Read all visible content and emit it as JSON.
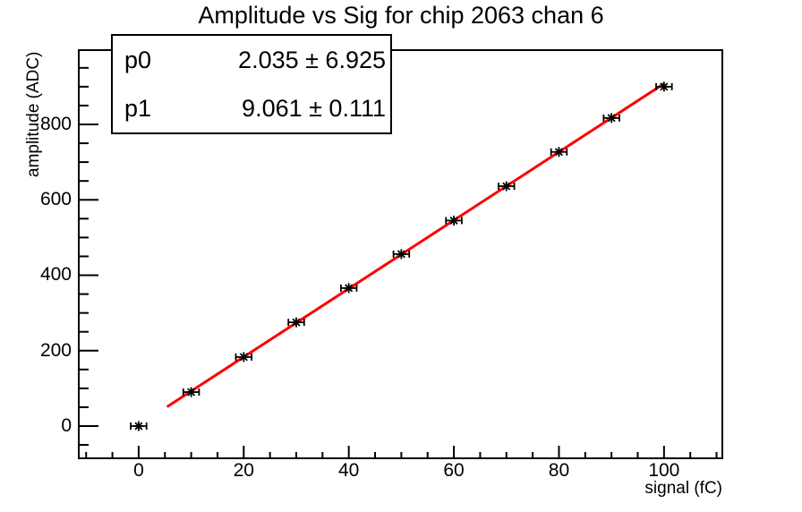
{
  "title": "Amplitude vs Sig for chip 2063 chan 6",
  "stats_box": {
    "rows": [
      {
        "name": "p0",
        "value": "2.035 ± 6.925"
      },
      {
        "name": "p1",
        "value": "9.061 ± 0.111"
      }
    ]
  },
  "chart_data": {
    "type": "scatter",
    "title": "Amplitude vs Sig for chip 2063 chan 6",
    "xlabel": "signal (fC)",
    "ylabel": "amplitude (ADC)",
    "x": [
      0,
      10,
      20,
      30,
      40,
      50,
      60,
      70,
      80,
      90,
      100
    ],
    "y": [
      0,
      90,
      183,
      275,
      366,
      456,
      545,
      636,
      727,
      817,
      900
    ],
    "x_error": 1.5,
    "marker": "asterisk",
    "marker_color": "#000000",
    "fit": {
      "type": "linear",
      "p0": 2.035,
      "p1": 9.061,
      "x_range": [
        5.4,
        100
      ],
      "color": "#ff0000"
    },
    "xlim": [
      -11.4,
      111.1
    ],
    "ylim": [
      -85.5,
      997
    ],
    "x_major_ticks": [
      0,
      20,
      40,
      60,
      80,
      100
    ],
    "y_major_ticks": [
      0,
      200,
      400,
      600,
      800
    ],
    "x_minor_step": 5,
    "y_minor_step": 50,
    "grid": false,
    "frame_color": "#000000",
    "background_color": "#ffffff",
    "legend": "none"
  }
}
